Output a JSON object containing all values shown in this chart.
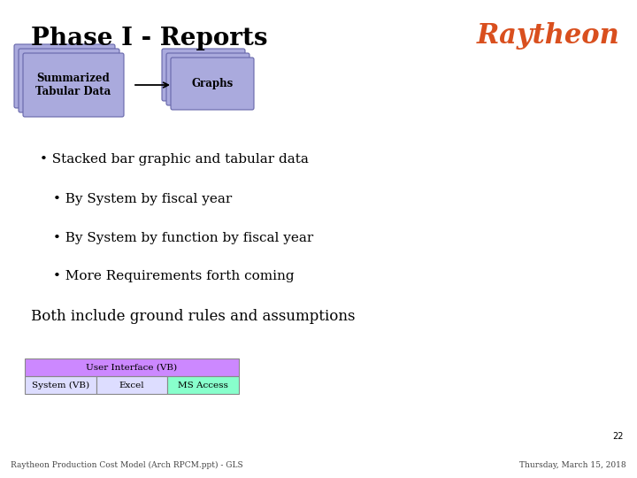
{
  "title": "Phase I - Reports",
  "title_fontsize": 20,
  "title_color": "#000000",
  "background_color": "#ffffff",
  "raytheon_text": "Raytheon",
  "raytheon_color": "#d94f1e",
  "raytheon_fontsize": 22,
  "box1_label": "Summarized\nTabular Data",
  "box2_label": "Graphs",
  "box_facecolor": "#aaaadd",
  "box_edgecolor": "#6666aa",
  "bullet1": "Stacked bar graphic and tabular data",
  "bullet2": "By System by fiscal year",
  "bullet3": "By System by function by fiscal year",
  "bullet4": "More Requirements forth coming",
  "both_line": "Both include ground rules and assumptions",
  "bullet_fontsize": 11,
  "both_fontsize": 12,
  "table_header": "User Interface (VB)",
  "table_cells": [
    "System (VB)",
    "Excel",
    "MS Access"
  ],
  "table_header_color": "#cc88ff",
  "table_cell_colors": [
    "#ddddff",
    "#ddddff",
    "#88ffcc"
  ],
  "table_fontsize": 7.5,
  "footer_left": "Raytheon Production Cost Model (Arch RPCM.ppt) - GLS",
  "footer_right": "Thursday, March 15, 2018",
  "footer_fontsize": 6.5,
  "page_number": "22"
}
